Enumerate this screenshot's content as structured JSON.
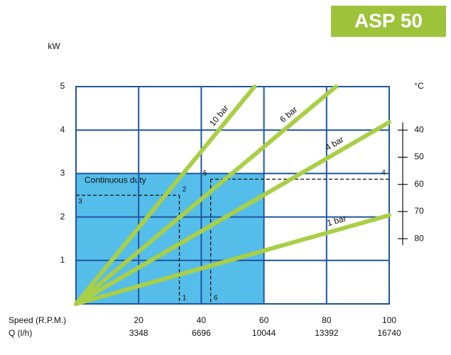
{
  "chart_data": {
    "type": "line",
    "title": "ASP 50",
    "ylabel": "kW",
    "y2label": "°C",
    "xlabel": "Speed (R.P.M.)",
    "x2label": "Q (l/h)",
    "xlim": [
      0,
      100
    ],
    "xticks": [
      20,
      40,
      60,
      80,
      100
    ],
    "x2ticks": [
      3348,
      6696,
      10044,
      13392,
      16740
    ],
    "ylim": [
      0,
      5
    ],
    "yticks": [
      1,
      2,
      3,
      4,
      5
    ],
    "y2lim": [
      104,
      24
    ],
    "y2ticks": [
      40,
      50,
      60,
      70,
      80
    ],
    "grid": true,
    "region": {
      "label": "Continuous duty",
      "xlim": [
        0,
        60
      ],
      "ylim": [
        0,
        3
      ],
      "color": "#55bde9"
    },
    "series": [
      {
        "name": "10 bar",
        "color": "#a9cf46",
        "x": [
          0,
          57
        ],
        "values": [
          0,
          5
        ]
      },
      {
        "name": "6 bar",
        "color": "#a9cf46",
        "x": [
          0,
          83
        ],
        "values": [
          0,
          5
        ]
      },
      {
        "name": "4 bar",
        "color": "#a9cf46",
        "x": [
          0,
          100
        ],
        "values": [
          0,
          4.18
        ]
      },
      {
        "name": "1 bar",
        "color": "#a9cf46",
        "x": [
          0,
          100
        ],
        "values": [
          0,
          2.04
        ]
      }
    ],
    "guides": [
      {
        "x": 33,
        "y": 2.5,
        "label_left": "3",
        "label_point": "2",
        "label_bottom": "1"
      },
      {
        "x": 43,
        "y": 2.87,
        "label_right": "4",
        "label_point": "5",
        "label_bottom": "6"
      }
    ]
  }
}
